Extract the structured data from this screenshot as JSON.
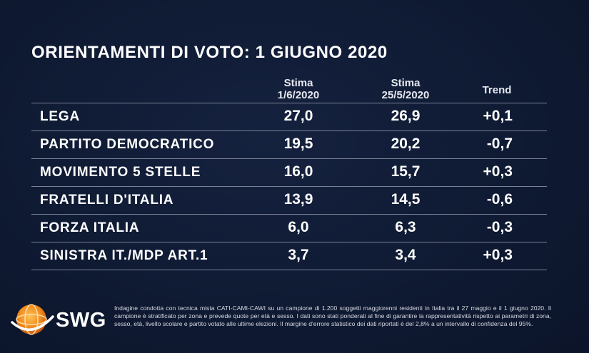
{
  "title": "ORIENTAMENTI DI VOTO: 1 GIUGNO 2020",
  "columns": {
    "stima1": {
      "line1": "Stima",
      "line2": "1/6/2020"
    },
    "stima2": {
      "line1": "Stima",
      "line2": "25/5/2020"
    },
    "trend": "Trend"
  },
  "chart_data": {
    "type": "table",
    "title": "ORIENTAMENTI DI VOTO: 1 GIUGNO 2020",
    "columns": [
      "Stima 1/6/2020",
      "Stima 25/5/2020",
      "Trend"
    ],
    "rows": [
      {
        "party": "LEGA",
        "stima_1_6_2020": "27,0",
        "stima_25_5_2020": "26,9",
        "trend": "+0,1"
      },
      {
        "party": "PARTITO DEMOCRATICO",
        "stima_1_6_2020": "19,5",
        "stima_25_5_2020": "20,2",
        "trend": "-0,7"
      },
      {
        "party": "MOVIMENTO 5 STELLE",
        "stima_1_6_2020": "16,0",
        "stima_25_5_2020": "15,7",
        "trend": "+0,3"
      },
      {
        "party": "FRATELLI D'ITALIA",
        "stima_1_6_2020": "13,9",
        "stima_25_5_2020": "14,5",
        "trend": "-0,6"
      },
      {
        "party": "FORZA ITALIA",
        "stima_1_6_2020": "6,0",
        "stima_25_5_2020": "6,3",
        "trend": "-0,3"
      },
      {
        "party": "SINISTRA IT./MDP ART.1",
        "stima_1_6_2020": "3,7",
        "stima_25_5_2020": "3,4",
        "trend": "+0,3"
      }
    ]
  },
  "logo": {
    "text": "SWG",
    "icon": "swg-globe-icon",
    "colors": {
      "orange": "#f28c1e",
      "white": "#ffffff"
    }
  },
  "footnote": "Indagine condotta con tecnica mista CATI-CAMI-CAWI su un campione di 1.200 soggetti maggiorenni residenti in Italia tra il 27 maggio e il 1 giugno 2020. Il campione è stratificato per zona e prevede quote per età e sesso. I dati sono stati ponderati al fine di garantire la rappresentatività rispetto ai parametri di zona, sesso, età, livello scolare e partito votato alle ultime elezioni. Il margine d'errore statistico dei dati riportati è del 2,8% a un intervallo di confidenza del 95%.",
  "colors": {
    "background": "#0e1830",
    "text": "#ffffff",
    "rule": "#7c8296"
  }
}
